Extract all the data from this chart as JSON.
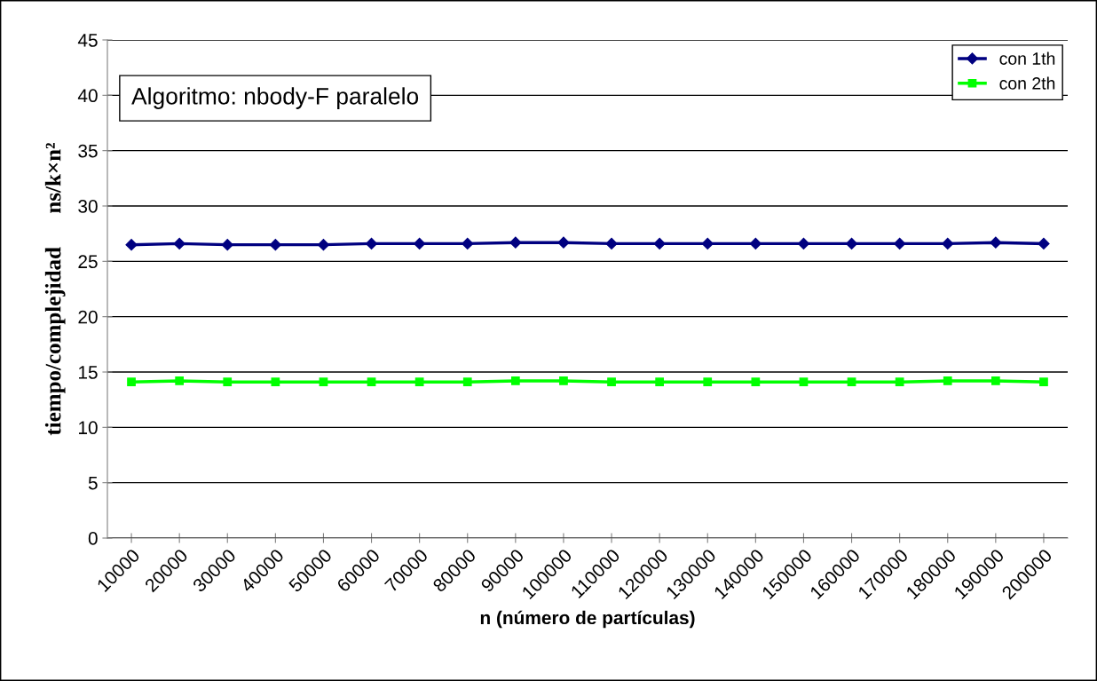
{
  "chart_data": {
    "type": "line",
    "xlabel": "n (número de partículas)",
    "ylabel": "tiempo/complejidad      ns/k×n²",
    "annotations": [
      "Algoritmo: nbody-F paralelo"
    ],
    "categories": [
      "10000",
      "20000",
      "30000",
      "40000",
      "50000",
      "60000",
      "70000",
      "80000",
      "90000",
      "100000",
      "110000",
      "120000",
      "130000",
      "140000",
      "150000",
      "160000",
      "170000",
      "180000",
      "190000",
      "200000"
    ],
    "series": [
      {
        "name": "con 1th",
        "color": "#000080",
        "marker": "diamond",
        "values": [
          26.5,
          26.6,
          26.5,
          26.5,
          26.5,
          26.6,
          26.6,
          26.6,
          26.7,
          26.7,
          26.6,
          26.6,
          26.6,
          26.6,
          26.6,
          26.6,
          26.6,
          26.6,
          26.7,
          26.6
        ]
      },
      {
        "name": "con 2th",
        "color": "#00ff00",
        "marker": "square",
        "values": [
          14.1,
          14.2,
          14.1,
          14.1,
          14.1,
          14.1,
          14.1,
          14.1,
          14.2,
          14.2,
          14.1,
          14.1,
          14.1,
          14.1,
          14.1,
          14.1,
          14.1,
          14.2,
          14.2,
          14.1
        ]
      }
    ],
    "ylim": [
      0,
      45
    ],
    "yticks": [
      0,
      5,
      10,
      15,
      20,
      25,
      30,
      35,
      40,
      45
    ],
    "grid": "y",
    "legend": "top right"
  }
}
